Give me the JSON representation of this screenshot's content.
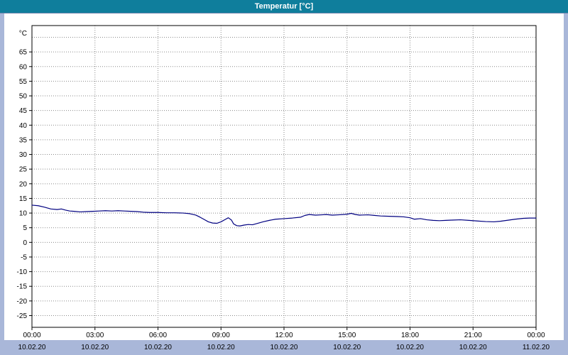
{
  "title": "Temperatur [°C]",
  "colors": {
    "titlebar_bg": "#0f7e9c",
    "title_text": "#ffffff",
    "window_bg": "#a9b7d9",
    "panel_bg": "#ffffff",
    "plot_border": "#000000",
    "grid": "#8a8a8a",
    "line": "#000080"
  },
  "chart_data": {
    "type": "line",
    "title": "Temperatur [°C]",
    "ylabel": "°C",
    "ylim": [
      -29,
      74
    ],
    "yticks": {
      "min": -25,
      "max": 65,
      "step": 5
    },
    "grid": true,
    "legend": "none",
    "x_unit": "hours",
    "xlim": [
      0,
      24
    ],
    "xticks": [
      {
        "hour": 0,
        "time": "00:00",
        "date": "10.02.20"
      },
      {
        "hour": 3,
        "time": "03:00",
        "date": "10.02.20"
      },
      {
        "hour": 6,
        "time": "06:00",
        "date": "10.02.20"
      },
      {
        "hour": 9,
        "time": "09:00",
        "date": "10.02.20"
      },
      {
        "hour": 12,
        "time": "12:00",
        "date": "10.02.20"
      },
      {
        "hour": 15,
        "time": "15:00",
        "date": "10.02.20"
      },
      {
        "hour": 18,
        "time": "18:00",
        "date": "10.02.20"
      },
      {
        "hour": 21,
        "time": "21:00",
        "date": "10.02.20"
      },
      {
        "hour": 24,
        "time": "00:00",
        "date": "11.02.20"
      }
    ],
    "series": [
      {
        "name": "Temperatur",
        "color": "#000080",
        "points": [
          [
            0,
            12.7
          ],
          [
            0.3,
            12.5
          ],
          [
            0.6,
            12.0
          ],
          [
            0.9,
            11.4
          ],
          [
            1.2,
            11.2
          ],
          [
            1.4,
            11.4
          ],
          [
            1.6,
            11.0
          ],
          [
            1.8,
            10.7
          ],
          [
            2.0,
            10.6
          ],
          [
            2.3,
            10.4
          ],
          [
            2.6,
            10.5
          ],
          [
            2.9,
            10.6
          ],
          [
            3.2,
            10.7
          ],
          [
            3.5,
            10.8
          ],
          [
            3.8,
            10.7
          ],
          [
            4.1,
            10.8
          ],
          [
            4.4,
            10.7
          ],
          [
            4.7,
            10.6
          ],
          [
            5.0,
            10.5
          ],
          [
            5.3,
            10.3
          ],
          [
            5.6,
            10.2
          ],
          [
            6.0,
            10.2
          ],
          [
            6.4,
            10.1
          ],
          [
            6.8,
            10.1
          ],
          [
            7.2,
            10.0
          ],
          [
            7.5,
            9.8
          ],
          [
            7.8,
            9.3
          ],
          [
            8.0,
            8.6
          ],
          [
            8.2,
            7.8
          ],
          [
            8.4,
            7.0
          ],
          [
            8.6,
            6.6
          ],
          [
            8.8,
            6.5
          ],
          [
            9.0,
            7.0
          ],
          [
            9.2,
            7.8
          ],
          [
            9.35,
            8.4
          ],
          [
            9.5,
            7.6
          ],
          [
            9.6,
            6.3
          ],
          [
            9.75,
            5.7
          ],
          [
            9.9,
            5.6
          ],
          [
            10.1,
            5.9
          ],
          [
            10.3,
            6.1
          ],
          [
            10.5,
            6.0
          ],
          [
            10.7,
            6.4
          ],
          [
            11.0,
            7.0
          ],
          [
            11.3,
            7.5
          ],
          [
            11.6,
            7.9
          ],
          [
            12.0,
            8.1
          ],
          [
            12.4,
            8.3
          ],
          [
            12.8,
            8.6
          ],
          [
            13.0,
            9.2
          ],
          [
            13.2,
            9.5
          ],
          [
            13.5,
            9.3
          ],
          [
            13.8,
            9.4
          ],
          [
            14.0,
            9.5
          ],
          [
            14.3,
            9.3
          ],
          [
            14.6,
            9.4
          ],
          [
            15.0,
            9.6
          ],
          [
            15.2,
            9.9
          ],
          [
            15.4,
            9.5
          ],
          [
            15.6,
            9.3
          ],
          [
            16.0,
            9.4
          ],
          [
            16.3,
            9.2
          ],
          [
            16.6,
            9.0
          ],
          [
            17.0,
            8.9
          ],
          [
            17.4,
            8.8
          ],
          [
            17.7,
            8.7
          ],
          [
            18.0,
            8.4
          ],
          [
            18.2,
            7.9
          ],
          [
            18.5,
            8.1
          ],
          [
            18.8,
            7.7
          ],
          [
            19.1,
            7.5
          ],
          [
            19.4,
            7.4
          ],
          [
            19.7,
            7.5
          ],
          [
            20.0,
            7.6
          ],
          [
            20.4,
            7.7
          ],
          [
            20.8,
            7.5
          ],
          [
            21.2,
            7.3
          ],
          [
            21.6,
            7.1
          ],
          [
            22.0,
            7.0
          ],
          [
            22.3,
            7.2
          ],
          [
            22.7,
            7.6
          ],
          [
            23.0,
            7.9
          ],
          [
            23.4,
            8.2
          ],
          [
            23.7,
            8.3
          ],
          [
            24.0,
            8.3
          ]
        ]
      }
    ]
  }
}
